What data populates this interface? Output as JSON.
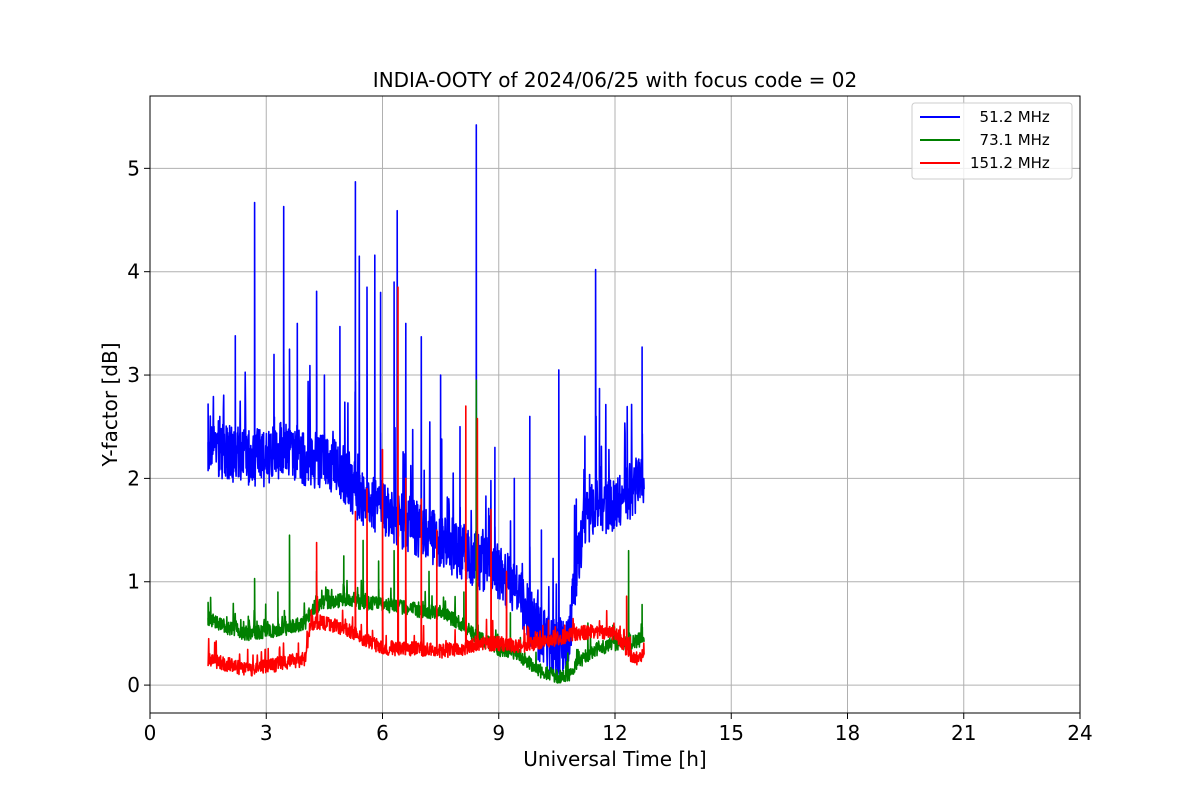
{
  "chart_data": {
    "type": "line",
    "title": "INDIA-OOTY of 2024/06/25 with focus code = 02",
    "xlabel": "Universal Time [h]",
    "ylabel": "Y-factor [dB]",
    "xlim": [
      0,
      24
    ],
    "ylim": [
      -0.27,
      5.7
    ],
    "xticks": [
      0,
      3,
      6,
      9,
      12,
      15,
      18,
      21,
      24
    ],
    "yticks": [
      0,
      1,
      2,
      3,
      4,
      5
    ],
    "grid": true,
    "legend_position": "top-right",
    "series": [
      {
        "name": "  51.2 MHz",
        "color": "#0000ff",
        "base": [
          [
            1.5,
            2.35
          ],
          [
            2.0,
            2.25
          ],
          [
            2.5,
            2.2
          ],
          [
            3.0,
            2.2
          ],
          [
            3.5,
            2.3
          ],
          [
            4.0,
            2.2
          ],
          [
            4.5,
            2.15
          ],
          [
            5.0,
            2.05
          ],
          [
            5.5,
            1.8
          ],
          [
            6.0,
            1.7
          ],
          [
            6.5,
            1.6
          ],
          [
            7.0,
            1.5
          ],
          [
            7.5,
            1.4
          ],
          [
            8.0,
            1.3
          ],
          [
            8.5,
            1.2
          ],
          [
            9.0,
            1.1
          ],
          [
            9.5,
            0.9
          ],
          [
            10.0,
            0.5
          ],
          [
            10.5,
            0.35
          ],
          [
            10.8,
            0.4
          ],
          [
            11.0,
            1.1
          ],
          [
            11.2,
            1.6
          ],
          [
            11.5,
            1.7
          ],
          [
            12.0,
            1.75
          ],
          [
            12.5,
            1.9
          ],
          [
            12.75,
            2.0
          ]
        ],
        "noise": 0.28,
        "spikes": [
          [
            1.5,
            2.72
          ],
          [
            1.8,
            2.6
          ],
          [
            2.2,
            3.38
          ],
          [
            2.7,
            4.67
          ],
          [
            3.2,
            3.2
          ],
          [
            3.45,
            4.63
          ],
          [
            3.6,
            3.25
          ],
          [
            3.8,
            3.5
          ],
          [
            4.3,
            3.81
          ],
          [
            4.5,
            3.0
          ],
          [
            4.9,
            3.47
          ],
          [
            5.3,
            4.87
          ],
          [
            5.4,
            4.15
          ],
          [
            5.6,
            3.85
          ],
          [
            5.8,
            4.16
          ],
          [
            5.95,
            3.8
          ],
          [
            6.3,
            3.9
          ],
          [
            6.38,
            4.59
          ],
          [
            6.6,
            3.5
          ],
          [
            7.0,
            3.37
          ],
          [
            7.5,
            3.0
          ],
          [
            8.0,
            2.5
          ],
          [
            8.42,
            5.42
          ],
          [
            8.9,
            2.3
          ],
          [
            9.4,
            2.0
          ],
          [
            9.8,
            2.6
          ],
          [
            10.1,
            1.5
          ],
          [
            10.55,
            3.05
          ],
          [
            11.0,
            1.8
          ],
          [
            11.5,
            4.02
          ],
          [
            11.6,
            2.87
          ],
          [
            12.3,
            2.1
          ],
          [
            12.7,
            3.27
          ]
        ]
      },
      {
        "name": "  73.1 MHz",
        "color": "#008000",
        "base": [
          [
            1.5,
            0.65
          ],
          [
            2.0,
            0.55
          ],
          [
            2.5,
            0.5
          ],
          [
            3.0,
            0.52
          ],
          [
            3.5,
            0.55
          ],
          [
            4.0,
            0.6
          ],
          [
            4.2,
            0.75
          ],
          [
            4.5,
            0.8
          ],
          [
            5.0,
            0.82
          ],
          [
            5.5,
            0.8
          ],
          [
            6.0,
            0.78
          ],
          [
            6.5,
            0.75
          ],
          [
            7.0,
            0.72
          ],
          [
            7.5,
            0.7
          ],
          [
            8.0,
            0.6
          ],
          [
            8.5,
            0.45
          ],
          [
            9.0,
            0.35
          ],
          [
            9.5,
            0.3
          ],
          [
            10.0,
            0.15
          ],
          [
            10.5,
            0.08
          ],
          [
            10.8,
            0.1
          ],
          [
            11.0,
            0.2
          ],
          [
            11.5,
            0.35
          ],
          [
            12.0,
            0.4
          ],
          [
            12.5,
            0.42
          ],
          [
            12.75,
            0.45
          ]
        ],
        "noise": 0.07,
        "spikes": [
          [
            1.5,
            0.8
          ],
          [
            2.7,
            1.03
          ],
          [
            3.3,
            0.9
          ],
          [
            3.6,
            1.45
          ],
          [
            4.3,
            1.1
          ],
          [
            5.0,
            1.25
          ],
          [
            5.5,
            1.4
          ],
          [
            5.9,
            1.2
          ],
          [
            6.3,
            1.3
          ],
          [
            7.2,
            1.1
          ],
          [
            8.1,
            0.9
          ],
          [
            8.42,
            2.95
          ],
          [
            9.3,
            0.7
          ],
          [
            11.3,
            0.6
          ],
          [
            12.35,
            1.3
          ],
          [
            12.7,
            0.78
          ]
        ]
      },
      {
        "name": "151.2 MHz",
        "color": "#ff0000",
        "base": [
          [
            1.5,
            0.25
          ],
          [
            2.0,
            0.2
          ],
          [
            2.5,
            0.15
          ],
          [
            3.0,
            0.18
          ],
          [
            3.5,
            0.22
          ],
          [
            4.0,
            0.25
          ],
          [
            4.15,
            0.6
          ],
          [
            4.5,
            0.6
          ],
          [
            5.0,
            0.55
          ],
          [
            5.5,
            0.45
          ],
          [
            6.0,
            0.35
          ],
          [
            6.5,
            0.35
          ],
          [
            7.0,
            0.35
          ],
          [
            7.5,
            0.33
          ],
          [
            8.0,
            0.35
          ],
          [
            8.5,
            0.4
          ],
          [
            9.0,
            0.4
          ],
          [
            9.5,
            0.38
          ],
          [
            10.0,
            0.4
          ],
          [
            10.5,
            0.45
          ],
          [
            11.0,
            0.5
          ],
          [
            11.5,
            0.52
          ],
          [
            12.0,
            0.5
          ],
          [
            12.3,
            0.35
          ],
          [
            12.5,
            0.25
          ],
          [
            12.75,
            0.3
          ]
        ],
        "noise": 0.07,
        "spikes": [
          [
            4.3,
            1.38
          ],
          [
            5.3,
            1.68
          ],
          [
            5.6,
            1.9
          ],
          [
            6.0,
            2.28
          ],
          [
            6.4,
            3.85
          ],
          [
            6.6,
            2.0
          ],
          [
            7.0,
            1.8
          ],
          [
            7.4,
            1.5
          ],
          [
            8.15,
            2.7
          ],
          [
            8.45,
            2.58
          ],
          [
            8.8,
            1.7
          ],
          [
            9.2,
            1.1
          ],
          [
            12.3,
            0.86
          ]
        ]
      }
    ]
  }
}
